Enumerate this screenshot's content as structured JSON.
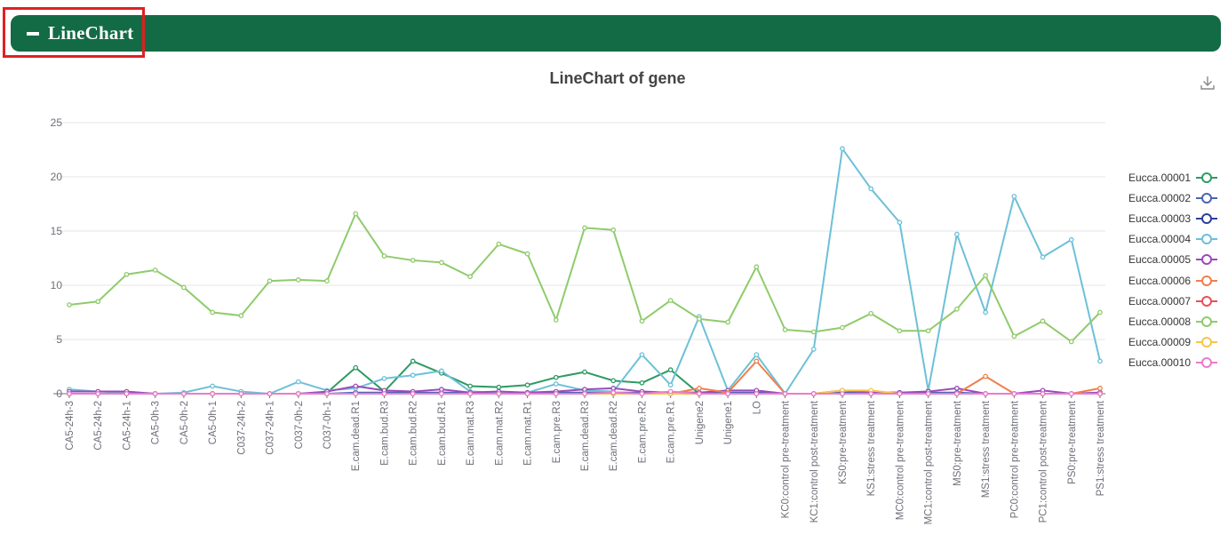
{
  "header": {
    "title": "LineChart"
  },
  "chart_data": {
    "type": "line",
    "title": "LineChart of gene",
    "ylim": [
      0,
      25
    ],
    "yticks": [
      "0",
      "5",
      "10",
      "15",
      "20",
      "25"
    ],
    "grid": true,
    "legend_position": "right",
    "categories": [
      "CA5-24h-3",
      "CA5-24h-2",
      "CA5-24h-1",
      "CA5-0h-3",
      "CA5-0h-2",
      "CA5-0h-1",
      "C037-24h-2",
      "C037-24h-1",
      "C037-0h-2",
      "C037-0h-1",
      "E.cam.dead.R1",
      "E.cam.bud.R3",
      "E.cam.bud.R2",
      "E.cam.bud.R1",
      "E.cam.mat.R3",
      "E.cam.mat.R2",
      "E.cam.mat.R1",
      "E.cam.pre.R3",
      "E.cam.dead.R3",
      "E.cam.dead.R2",
      "E.cam.pre.R2",
      "E.cam.pre.R1",
      "Unigene2",
      "Unigene1",
      "LO",
      "KC0:control pre-treatment",
      "KC1:control post-treatment",
      "KS0:pre-treatment",
      "KS1:stress treatment",
      "MC0:control pre-treatment",
      "MC1:control post-treatment",
      "MS0:pre-treatment",
      "MS1:stress treatment",
      "PC0:control pre-treatment",
      "PC1:control post-treatment",
      "PS0:pre-treatment",
      "PS1:stress treatment"
    ],
    "series": [
      {
        "name": "Eucca.00001",
        "color": "#2e9b62",
        "values": [
          0,
          0,
          0,
          0,
          0,
          0,
          0,
          0,
          0,
          0.1,
          2.4,
          0.2,
          3.0,
          1.9,
          0.7,
          0.6,
          0.8,
          1.5,
          2.0,
          1.2,
          1.0,
          2.2,
          0,
          0,
          0,
          0,
          0,
          0,
          0,
          0,
          0,
          0,
          0,
          0,
          0,
          0,
          0
        ]
      },
      {
        "name": "Eucca.00002",
        "color": "#4a63b5",
        "values": [
          0,
          0,
          0,
          0,
          0,
          0,
          0,
          0,
          0,
          0,
          0.1,
          0.1,
          0.1,
          0.1,
          0.1,
          0.1,
          0.1,
          0.1,
          0.1,
          0.1,
          0.1,
          0.1,
          0.1,
          0.1,
          0.1,
          0,
          0,
          0.1,
          0.1,
          0.1,
          0.1,
          0.1,
          0,
          0,
          0,
          0,
          0.1
        ]
      },
      {
        "name": "Eucca.00003",
        "color": "#2d3f9b",
        "values": [
          0,
          0,
          0,
          0,
          0,
          0,
          0,
          0,
          0,
          0,
          0,
          0,
          0,
          0,
          0,
          0,
          0,
          0,
          0,
          0,
          0,
          0,
          0,
          0,
          0,
          0,
          0,
          0,
          0,
          0,
          0,
          0,
          0,
          0,
          0,
          0,
          0
        ]
      },
      {
        "name": "Eucca.00004",
        "color": "#6dc0d8",
        "values": [
          0.4,
          0.2,
          0.1,
          0,
          0.1,
          0.7,
          0.2,
          0,
          1.1,
          0.3,
          0.5,
          1.4,
          1.7,
          2.1,
          0.2,
          0.1,
          0.1,
          0.9,
          0.3,
          0.2,
          3.6,
          0.8,
          7.1,
          0.3,
          3.6,
          0,
          4.1,
          22.6,
          18.9,
          15.8,
          0.3,
          14.7,
          7.5,
          18.2,
          12.6,
          14.2,
          3.0
        ]
      },
      {
        "name": "Eucca.00005",
        "color": "#9a4bb8",
        "values": [
          0.2,
          0.2,
          0.2,
          0,
          0,
          0,
          0,
          0,
          0,
          0.2,
          0.7,
          0.3,
          0.2,
          0.4,
          0.1,
          0.2,
          0.1,
          0.2,
          0.4,
          0.5,
          0.2,
          0.1,
          0.1,
          0.3,
          0.3,
          0,
          0,
          0.3,
          0.1,
          0.1,
          0.2,
          0.5,
          0,
          0,
          0.3,
          0,
          0.1
        ]
      },
      {
        "name": "Eucca.00006",
        "color": "#f07f4b",
        "values": [
          0,
          0,
          0,
          0,
          0,
          0,
          0,
          0,
          0,
          0,
          0,
          0,
          0,
          0,
          0,
          0,
          0,
          0,
          0,
          0,
          0,
          0,
          0.5,
          0.1,
          3.0,
          0,
          0,
          0,
          0,
          0,
          0,
          0,
          1.6,
          0,
          0,
          0,
          0.5
        ]
      },
      {
        "name": "Eucca.00007",
        "color": "#e8505b",
        "values": [
          0,
          0,
          0,
          0,
          0,
          0,
          0,
          0,
          0,
          0,
          0,
          0,
          0,
          0,
          0,
          0,
          0,
          0,
          0,
          0,
          0,
          0,
          0,
          0,
          0,
          0,
          0,
          0,
          0,
          0,
          0,
          0,
          0,
          0,
          0,
          0,
          0
        ]
      },
      {
        "name": "Eucca.00008",
        "color": "#8fcb6b",
        "values": [
          8.2,
          8.5,
          11.0,
          11.4,
          9.8,
          7.5,
          7.2,
          10.4,
          10.5,
          10.4,
          16.6,
          12.7,
          12.3,
          12.1,
          10.8,
          13.8,
          12.9,
          6.8,
          15.3,
          15.1,
          6.7,
          8.6,
          6.9,
          6.6,
          11.7,
          5.9,
          5.7,
          6.1,
          7.4,
          5.8,
          5.8,
          7.8,
          10.9,
          5.3,
          6.7,
          4.8,
          7.5
        ]
      },
      {
        "name": "Eucca.00009",
        "color": "#f7c548",
        "values": [
          0,
          0,
          0,
          0,
          0,
          0,
          0,
          0,
          0,
          0,
          0,
          0,
          0,
          0,
          0,
          0,
          0,
          0,
          0,
          0,
          0,
          0,
          0,
          0,
          0,
          0,
          0,
          0.3,
          0.3,
          0,
          0,
          0,
          0,
          0,
          0,
          0,
          0
        ]
      },
      {
        "name": "Eucca.00010",
        "color": "#ea7ccc",
        "values": [
          0,
          0,
          0,
          0,
          0,
          0,
          0,
          0,
          0,
          0,
          0,
          0,
          0,
          0,
          0,
          0,
          0,
          0,
          0,
          0.1,
          0,
          0.2,
          0,
          0,
          0,
          0,
          0,
          0,
          0,
          0,
          0,
          0,
          0,
          0,
          0,
          0,
          0
        ]
      }
    ]
  }
}
